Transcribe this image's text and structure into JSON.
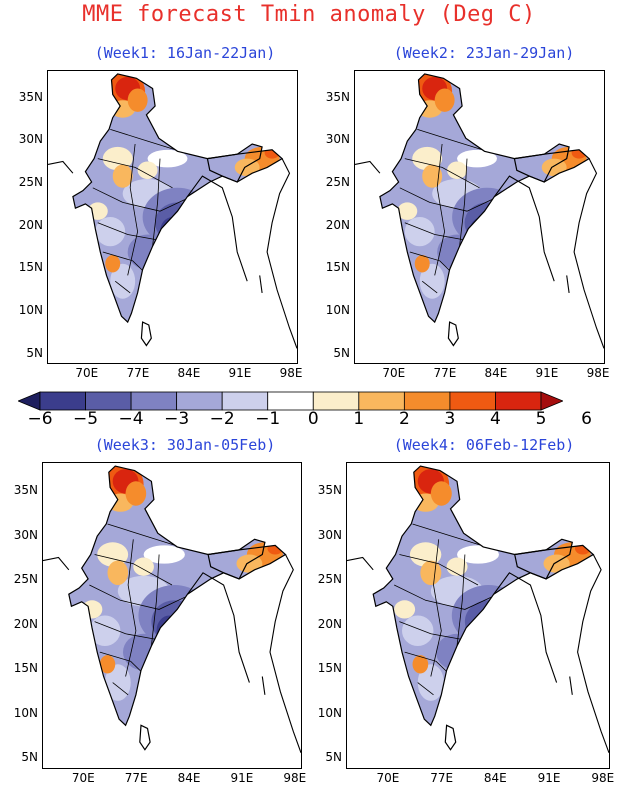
{
  "title": "MME forecast Tmin anomaly (Deg C)",
  "colors": {
    "title": "#e8302b",
    "panel_title": "#2b45d9",
    "scale": [
      "#1e1f5e",
      "#3b3d8c",
      "#5a5da6",
      "#7f82c2",
      "#a5a8d8",
      "#cdd0ec",
      "#ffffff",
      "#fbeecb",
      "#f9b75e",
      "#f58c2c",
      "#ef5a12",
      "#d9250f",
      "#a50d0d"
    ]
  },
  "colorbar": {
    "labels": [
      "−6",
      "−5",
      "−4",
      "−3",
      "−2",
      "−1",
      "0",
      "1",
      "2",
      "3",
      "4",
      "5",
      "6"
    ]
  },
  "axes": {
    "lat_labels": [
      "35N",
      "30N",
      "25N",
      "20N",
      "15N",
      "10N",
      "5N"
    ],
    "lon_labels": [
      "70E",
      "77E",
      "84E",
      "91E",
      "98E"
    ]
  },
  "panels": [
    {
      "title": "(Week1: 16Jan-22Jan)",
      "cool_center": "east-central",
      "warm_regions": [
        "north",
        "northeast"
      ]
    },
    {
      "title": "(Week2: 23Jan-29Jan)",
      "cool_center": "east-central",
      "warm_regions": [
        "north",
        "northeast"
      ]
    },
    {
      "title": "(Week3: 30Jan-05Feb)",
      "cool_center": "east-central",
      "warm_regions": [
        "north",
        "northeast"
      ]
    },
    {
      "title": "(Week4: 06Feb-12Feb)",
      "cool_center": "east-central",
      "warm_regions": [
        "north",
        "northeast"
      ]
    }
  ]
}
